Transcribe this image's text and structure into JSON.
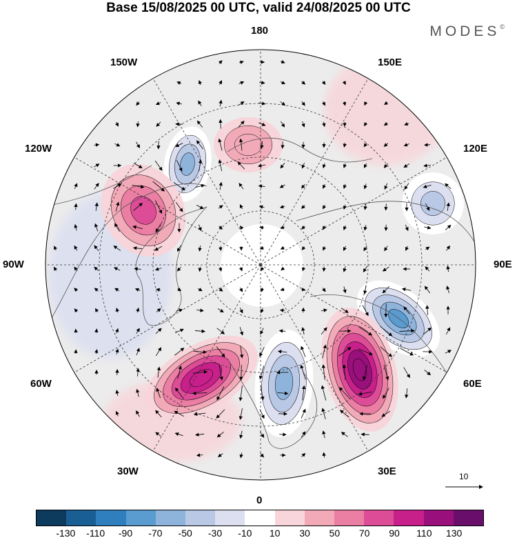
{
  "title": "Base 15/08/2025 00 UTC, valid 24/08/2025 00 UTC",
  "brand": "MODES",
  "brand_mark": "©",
  "longitude_labels": {
    "top": "180",
    "bottom": "0",
    "left": "90W",
    "right": "90E",
    "upper_left_1": "150W",
    "upper_left_2": "120W",
    "upper_right_1": "150E",
    "upper_right_2": "120E",
    "lower_left_1": "60W",
    "lower_left_2": "30W",
    "lower_right_1": "60E",
    "lower_right_2": "30E"
  },
  "reference_vector": {
    "label": "10"
  },
  "colorbar": {
    "colors": [
      "#0d3b5e",
      "#1a5f94",
      "#2f7fbf",
      "#5a9bd0",
      "#8fb4dc",
      "#b9c8e4",
      "#dcdff0",
      "#ffffff",
      "#f7d5da",
      "#f2aab8",
      "#ea7ea3",
      "#dd4d97",
      "#c7208a",
      "#99107c",
      "#6a0e6c"
    ],
    "ticks": [
      "-130",
      "-110",
      "-90",
      "-70",
      "-50",
      "-30",
      "-10",
      "10",
      "30",
      "50",
      "70",
      "90",
      "110",
      "130"
    ]
  },
  "anomaly_centres": [
    {
      "kind": "negative",
      "name": "blue-low-east",
      "value": -80
    },
    {
      "kind": "negative",
      "name": "blue-low-atlantic",
      "value": -70
    },
    {
      "kind": "negative",
      "name": "blue-low-pacific",
      "value": -60
    },
    {
      "kind": "negative",
      "name": "blue-low-northeast",
      "value": -40
    },
    {
      "kind": "positive",
      "name": "high-europe",
      "value": 115
    },
    {
      "kind": "positive",
      "name": "high-greenland",
      "value": 95
    },
    {
      "kind": "positive",
      "name": "high-alaska",
      "value": 70
    },
    {
      "kind": "positive",
      "name": "high-pacific",
      "value": 45
    }
  ]
}
